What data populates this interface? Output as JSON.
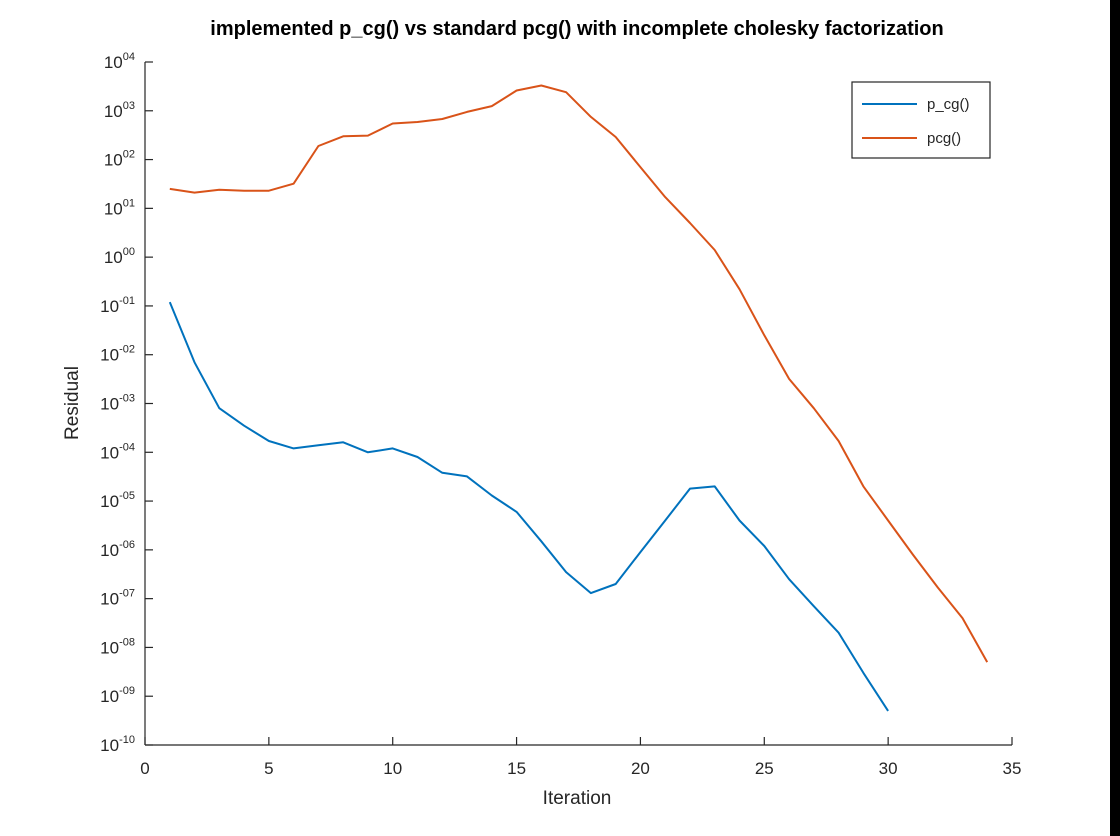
{
  "chart_data": {
    "type": "line",
    "title": "implemented p_cg() vs standard pcg() with incomplete cholesky factorization",
    "xlabel": "Iteration",
    "ylabel": "Residual",
    "xlim": [
      0,
      35
    ],
    "ylim_log10": [
      -10,
      4
    ],
    "y_scale": "log",
    "x_ticks": [
      0,
      5,
      10,
      15,
      20,
      25,
      30,
      35
    ],
    "y_tick_exponents": [
      4,
      3,
      2,
      1,
      0,
      -1,
      -2,
      -3,
      -4,
      -5,
      -6,
      -7,
      -8,
      -9,
      -10
    ],
    "y_tick_labels": [
      "04",
      "03",
      "02",
      "01",
      "00",
      "-01",
      "-02",
      "-03",
      "-04",
      "-05",
      "-06",
      "-07",
      "-08",
      "-09",
      "-10"
    ],
    "y_tick_base": "10",
    "grid": false,
    "legend_position": "top-right",
    "series": [
      {
        "name": "p_cg()",
        "color": "#0072bd",
        "x": [
          1,
          2,
          3,
          4,
          5,
          6,
          7,
          8,
          9,
          10,
          11,
          12,
          13,
          14,
          15,
          16,
          17,
          18,
          19,
          20,
          21,
          22,
          23,
          24,
          25,
          26,
          27,
          28,
          29,
          30
        ],
        "y": [
          0.12,
          0.007,
          0.0008,
          0.00035,
          0.00017,
          0.00012,
          0.00014,
          0.00016,
          0.0001,
          0.00012,
          8e-05,
          3.8e-05,
          3.2e-05,
          1.3e-05,
          6e-06,
          1.5e-06,
          3.5e-07,
          1.3e-07,
          2e-07,
          9e-07,
          4e-06,
          1.8e-05,
          2e-05,
          4e-06,
          1.2e-06,
          2.5e-07,
          7e-08,
          2e-08,
          3e-09,
          5e-10
        ]
      },
      {
        "name": "pcg()",
        "color": "#d95319",
        "x": [
          1,
          2,
          3,
          4,
          5,
          6,
          7,
          8,
          9,
          10,
          11,
          12,
          13,
          14,
          15,
          16,
          17,
          18,
          19,
          20,
          21,
          22,
          23,
          24,
          25,
          26,
          27,
          28,
          29,
          30,
          31,
          32,
          33,
          34
        ],
        "y": [
          25,
          21,
          24,
          23,
          23,
          32,
          190,
          300,
          310,
          550,
          590,
          680,
          950,
          1250,
          2600,
          3300,
          2400,
          750,
          290,
          70,
          17,
          5,
          1.4,
          0.22,
          0.025,
          0.0032,
          0.0008,
          0.00017,
          2e-05,
          4e-06,
          8e-07,
          1.7e-07,
          4e-08,
          5e-09
        ]
      }
    ]
  }
}
